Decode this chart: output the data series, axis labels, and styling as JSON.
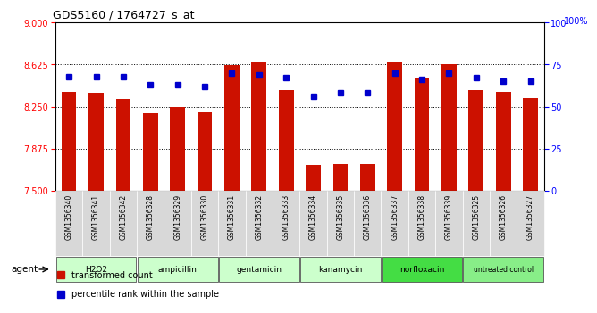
{
  "title": "GDS5160 / 1764727_s_at",
  "samples": [
    "GSM1356340",
    "GSM1356341",
    "GSM1356342",
    "GSM1356328",
    "GSM1356329",
    "GSM1356330",
    "GSM1356331",
    "GSM1356332",
    "GSM1356333",
    "GSM1356334",
    "GSM1356335",
    "GSM1356336",
    "GSM1356337",
    "GSM1356338",
    "GSM1356339",
    "GSM1356325",
    "GSM1356326",
    "GSM1356327"
  ],
  "transformed_counts": [
    8.38,
    8.37,
    8.32,
    8.19,
    8.25,
    8.2,
    8.62,
    8.65,
    8.4,
    7.73,
    7.74,
    7.74,
    8.65,
    8.5,
    8.63,
    8.4,
    8.38,
    8.33
  ],
  "percentile_ranks": [
    68,
    68,
    68,
    63,
    63,
    62,
    70,
    69,
    67,
    56,
    58,
    58,
    70,
    66,
    70,
    67,
    65,
    65
  ],
  "groups": [
    {
      "label": "H2O2",
      "start": 0,
      "end": 3,
      "color": "#ccffcc"
    },
    {
      "label": "ampicillin",
      "start": 3,
      "end": 6,
      "color": "#ccffcc"
    },
    {
      "label": "gentamicin",
      "start": 6,
      "end": 9,
      "color": "#ccffcc"
    },
    {
      "label": "kanamycin",
      "start": 9,
      "end": 12,
      "color": "#ccffcc"
    },
    {
      "label": "norfloxacin",
      "start": 12,
      "end": 15,
      "color": "#44dd44"
    },
    {
      "label": "untreated control",
      "start": 15,
      "end": 18,
      "color": "#88ee88"
    }
  ],
  "ylim_left": [
    7.5,
    9.0
  ],
  "ylim_right": [
    0,
    100
  ],
  "yticks_left": [
    7.5,
    7.875,
    8.25,
    8.625,
    9.0
  ],
  "yticks_right": [
    0,
    25,
    50,
    75,
    100
  ],
  "bar_color": "#cc1100",
  "dot_color": "#0000cc",
  "bar_bottom": 7.5,
  "grid_levels": [
    7.875,
    8.25,
    8.625
  ]
}
